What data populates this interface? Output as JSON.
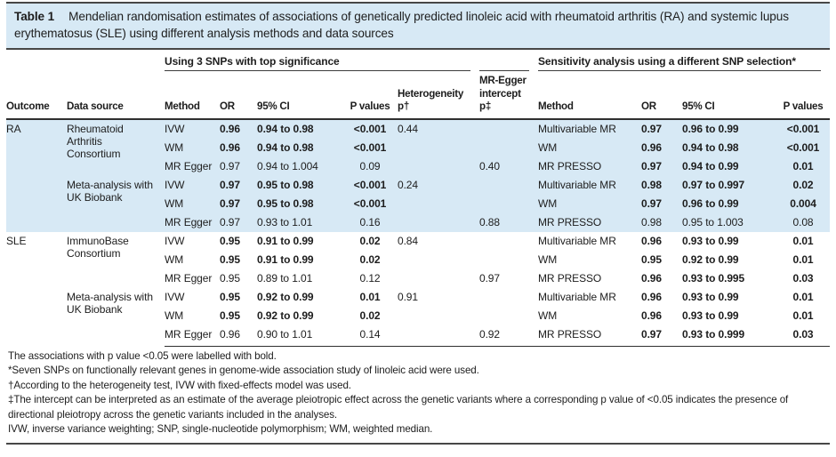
{
  "title": {
    "label": "Table 1",
    "caption": "Mendelian randomisation estimates of associations of genetically predicted linoleic acid with rheumatoid arthritis (RA) and systemic lupus erythematosus (SLE) using different analysis methods and data sources"
  },
  "groups": {
    "left": "Using 3 SNPs with top significance",
    "right": "Sensitivity analysis using a different SNP selection*"
  },
  "columns": {
    "outcome": "Outcome",
    "data_source": "Data source",
    "method": "Method",
    "or": "OR",
    "ci": "95% CI",
    "p": "P values",
    "het": "Heterogeneity p†",
    "egger": "MR-Egger intercept p‡",
    "method2": "Method",
    "or2": "OR",
    "ci2": "95% CI",
    "p2": "P values"
  },
  "rows": [
    {
      "outcome": "RA",
      "source": "Rheumatoid Arthritis Consortium",
      "method": "IVW",
      "or": "0.96",
      "ci": "0.94 to 0.98",
      "p": "<0.001",
      "het": "0.44",
      "s_method": "Multivariable MR",
      "s_or": "0.97",
      "s_ci": "0.96 to 0.99",
      "s_p": "<0.001"
    },
    {
      "method": "WM",
      "or": "0.96",
      "ci": "0.94 to 0.98",
      "p": "<0.001",
      "s_method": "WM",
      "s_or": "0.96",
      "s_ci": "0.94 to 0.98",
      "s_p": "<0.001"
    },
    {
      "method": "MR Egger",
      "or": "0.97",
      "ci": "0.94 to 1.004",
      "p": "0.09",
      "egger": "0.40",
      "s_method": "MR PRESSO",
      "s_or": "0.97",
      "s_ci": "0.94 to 0.99",
      "s_p": "0.01"
    },
    {
      "source": "Meta-analysis with UK Biobank",
      "method": "IVW",
      "or": "0.97",
      "ci": "0.95 to 0.98",
      "p": "<0.001",
      "het": "0.24",
      "s_method": "Multivariable MR",
      "s_or": "0.98",
      "s_ci": "0.97 to 0.997",
      "s_p": "0.02"
    },
    {
      "method": "WM",
      "or": "0.97",
      "ci": "0.95 to 0.98",
      "p": "<0.001",
      "s_method": "WM",
      "s_or": "0.97",
      "s_ci": "0.96 to 0.99",
      "s_p": "0.004"
    },
    {
      "method": "MR Egger",
      "or": "0.97",
      "ci": "0.93 to 1.01",
      "p": "0.16",
      "egger": "0.88",
      "s_method": "MR PRESSO",
      "s_or": "0.98",
      "s_ci": "0.95 to 1.003",
      "s_p": "0.08"
    },
    {
      "outcome": "SLE",
      "source": "ImmunoBase Consortium",
      "method": "IVW",
      "or": "0.95",
      "ci": "0.91 to 0.99",
      "p": "0.02",
      "het": "0.84",
      "s_method": "Multivariable MR",
      "s_or": "0.96",
      "s_ci": "0.93 to 0.99",
      "s_p": "0.01"
    },
    {
      "method": "WM",
      "or": "0.95",
      "ci": "0.91 to 0.99",
      "p": "0.02",
      "s_method": "WM",
      "s_or": "0.95",
      "s_ci": "0.92 to 0.99",
      "s_p": "0.01"
    },
    {
      "method": "MR Egger",
      "or": "0.95",
      "ci": "0.89 to 1.01",
      "p": "0.12",
      "egger": "0.97",
      "s_method": "MR PRESSO",
      "s_or": "0.96",
      "s_ci": "0.93 to 0.995",
      "s_p": "0.03"
    },
    {
      "source": "Meta-analysis with UK Biobank",
      "method": "IVW",
      "or": "0.95",
      "ci": "0.92 to 0.99",
      "p": "0.01",
      "het": "0.91",
      "s_method": "Multivariable MR",
      "s_or": "0.96",
      "s_ci": "0.93 to 0.99",
      "s_p": "0.01"
    },
    {
      "method": "WM",
      "or": "0.95",
      "ci": "0.92 to 0.99",
      "p": "0.02",
      "s_method": "WM",
      "s_or": "0.96",
      "s_ci": "0.93 to 0.99",
      "s_p": "0.01"
    },
    {
      "method": "MR Egger",
      "or": "0.96",
      "ci": "0.90 to 1.01",
      "p": "0.14",
      "egger": "0.92",
      "s_method": "MR PRESSO",
      "s_or": "0.97",
      "s_ci": "0.93 to 0.999",
      "s_p": "0.03"
    }
  ],
  "footnotes": [
    "The associations with p value <0.05 were labelled with bold.",
    "*Seven SNPs on functionally relevant genes in genome-wide association study of linoleic acid were used.",
    "†According to the heterogeneity test, IVW with fixed-effects model was used.",
    "‡The intercept can be interpreted as an estimate of the average pleiotropic effect across the genetic variants where a corresponding p value of <0.05 indicates the presence of directional pleiotropy across the genetic variants included in the analyses.",
    "IVW, inverse variance weighting; SNP, single-nucleotide polymorphism; WM, weighted median."
  ],
  "colors": {
    "highlight_blue": "#d7e9f5",
    "rule_dark": "#474747",
    "text": "#1d1d1d"
  }
}
